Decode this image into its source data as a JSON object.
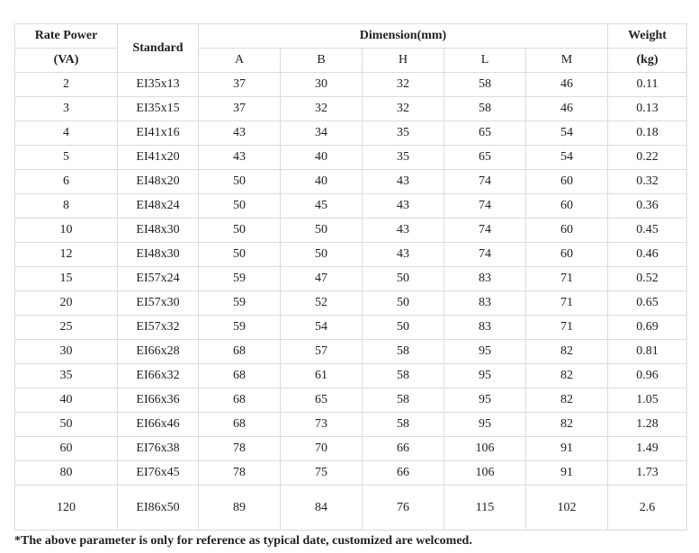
{
  "table": {
    "headers": {
      "rate_power_line1": "Rate Power",
      "rate_power_line2": "(VA)",
      "standard": "Standard",
      "dimension": "Dimension(mm)",
      "weight_line1": "Weight",
      "weight_line2": "(kg)",
      "dim_cols": [
        "A",
        "B",
        "H",
        "L",
        "M"
      ]
    },
    "rows": [
      [
        "2",
        "EI35x13",
        "37",
        "30",
        "32",
        "58",
        "46",
        "0.11"
      ],
      [
        "3",
        "EI35x15",
        "37",
        "32",
        "32",
        "58",
        "46",
        "0.13"
      ],
      [
        "4",
        "EI41x16",
        "43",
        "34",
        "35",
        "65",
        "54",
        "0.18"
      ],
      [
        "5",
        "EI41x20",
        "43",
        "40",
        "35",
        "65",
        "54",
        "0.22"
      ],
      [
        "6",
        "EI48x20",
        "50",
        "40",
        "43",
        "74",
        "60",
        "0.32"
      ],
      [
        "8",
        "EI48x24",
        "50",
        "45",
        "43",
        "74",
        "60",
        "0.36"
      ],
      [
        "10",
        "EI48x30",
        "50",
        "50",
        "43",
        "74",
        "60",
        "0.45"
      ],
      [
        "12",
        "EI48x30",
        "50",
        "50",
        "43",
        "74",
        "60",
        "0.46"
      ],
      [
        "15",
        "EI57x24",
        "59",
        "47",
        "50",
        "83",
        "71",
        "0.52"
      ],
      [
        "20",
        "EI57x30",
        "59",
        "52",
        "50",
        "83",
        "71",
        "0.65"
      ],
      [
        "25",
        "EI57x32",
        "59",
        "54",
        "50",
        "83",
        "71",
        "0.69"
      ],
      [
        "30",
        "EI66x28",
        "68",
        "57",
        "58",
        "95",
        "82",
        "0.81"
      ],
      [
        "35",
        "EI66x32",
        "68",
        "61",
        "58",
        "95",
        "82",
        "0.96"
      ],
      [
        "40",
        "EI66x36",
        "68",
        "65",
        "58",
        "95",
        "82",
        "1.05"
      ],
      [
        "50",
        "EI66x46",
        "68",
        "73",
        "58",
        "95",
        "82",
        "1.28"
      ],
      [
        "60",
        "EI76x38",
        "78",
        "70",
        "66",
        "106",
        "91",
        "1.49"
      ],
      [
        "80",
        "EI76x45",
        "78",
        "75",
        "66",
        "106",
        "91",
        "1.73"
      ],
      [
        "120",
        "EI86x50",
        "89",
        "84",
        "76",
        "115",
        "102",
        "2.6"
      ]
    ]
  },
  "footnote": "*The above parameter is only for reference as typical date, customized are welcomed."
}
